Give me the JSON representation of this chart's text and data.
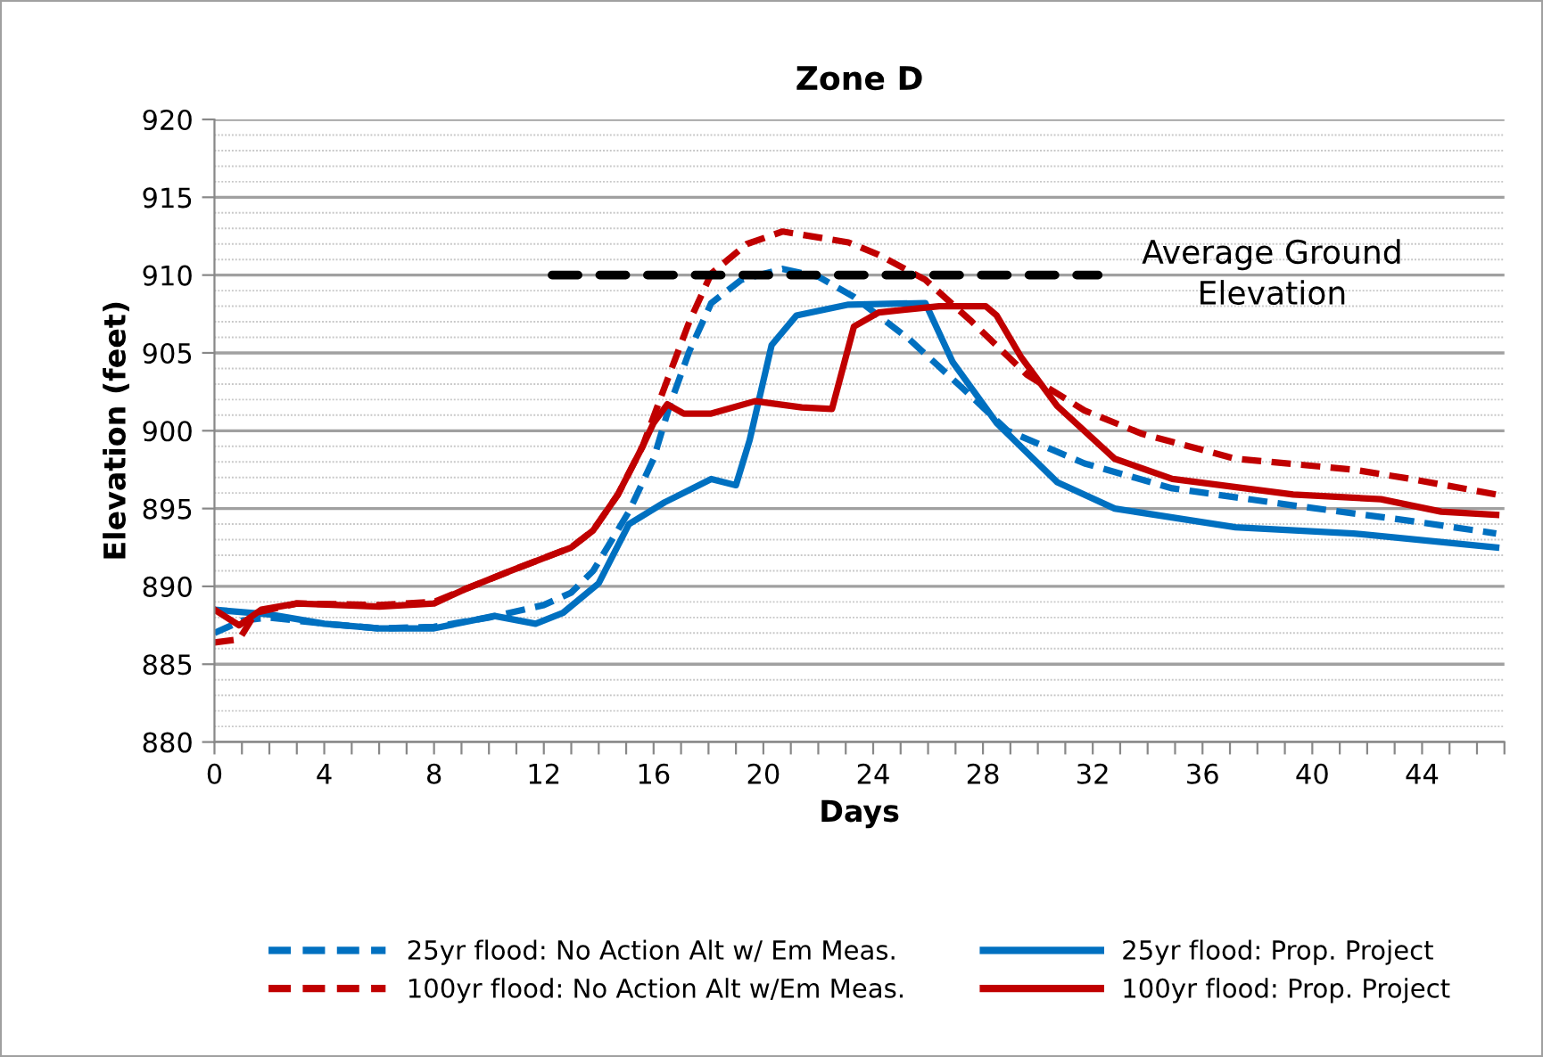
{
  "chart_data": {
    "type": "line",
    "title": "Zone D",
    "xlabel": "Days",
    "ylabel": "Elevation (feet)",
    "xlim": [
      0,
      47
    ],
    "ylim": [
      880,
      920
    ],
    "yticks": [
      880,
      885,
      890,
      895,
      900,
      905,
      910,
      915,
      920
    ],
    "xticks": [
      0,
      {
        "value": 1,
        "label": null
      },
      {
        "value": 2,
        "label": null
      },
      {
        "value": 3,
        "label": null
      },
      4,
      {
        "value": 5,
        "label": null
      },
      {
        "value": 6,
        "label": null
      },
      {
        "value": 7,
        "label": null
      },
      8,
      {
        "value": 9,
        "label": null
      },
      {
        "value": 10,
        "label": null
      },
      {
        "value": 11,
        "label": null
      },
      12,
      {
        "value": 13,
        "label": null
      },
      {
        "value": 14,
        "label": null
      },
      {
        "value": 15,
        "label": null
      },
      16,
      {
        "value": 17,
        "label": null
      },
      {
        "value": 18,
        "label": null
      },
      {
        "value": 19,
        "label": null
      },
      20,
      {
        "value": 21,
        "label": null
      },
      {
        "value": 22,
        "label": null
      },
      {
        "value": 23,
        "label": null
      },
      24,
      {
        "value": 25,
        "label": null
      },
      {
        "value": 26,
        "label": null
      },
      {
        "value": 27,
        "label": null
      },
      28,
      {
        "value": 29,
        "label": null
      },
      {
        "value": 30,
        "label": null
      },
      {
        "value": 31,
        "label": null
      },
      32,
      {
        "value": 33,
        "label": null
      },
      {
        "value": 34,
        "label": null
      },
      {
        "value": 35,
        "label": null
      },
      36,
      {
        "value": 37,
        "label": null
      },
      {
        "value": 38,
        "label": null
      },
      {
        "value": 39,
        "label": null
      },
      40,
      {
        "value": 41,
        "label": null
      },
      {
        "value": 42,
        "label": null
      },
      {
        "value": 43,
        "label": null
      },
      44,
      {
        "value": 45,
        "label": null
      },
      {
        "value": 46,
        "label": null
      },
      {
        "value": 47,
        "label": null
      }
    ],
    "grid": "y",
    "legend": "bottom",
    "series": [
      {
        "name": "25yr flood: No Action Alt w/ Em Meas.",
        "color": "#0070c0",
        "line_style": "dashed",
        "x": [
          0,
          1,
          2,
          4,
          6,
          8,
          10,
          12,
          13,
          13.8,
          15.1,
          16,
          16.6,
          17.3,
          18.1,
          19.2,
          20.7,
          22,
          23.3,
          25.3,
          27.4,
          28.9,
          31.7,
          34.9,
          39.3,
          43.6,
          46.7
        ],
        "values": [
          887.0,
          887.8,
          888.0,
          887.6,
          887.3,
          887.4,
          888.0,
          888.8,
          889.6,
          891.0,
          894.8,
          898.2,
          901.7,
          905.1,
          908.2,
          909.7,
          910.4,
          909.9,
          908.6,
          905.9,
          902.5,
          900.0,
          897.9,
          896.3,
          895.2,
          894.2,
          893.4
        ]
      },
      {
        "name": "25yr flood: Prop. Project",
        "color": "#0070c0",
        "line_style": "solid",
        "x": [
          0,
          2,
          4,
          6,
          8,
          10.2,
          11.7,
          12.7,
          14,
          15.1,
          16.4,
          18.1,
          19,
          19.5,
          20.3,
          21.2,
          23.1,
          25.9,
          26.9,
          28.5,
          30.7,
          32.8,
          37.2,
          41.5,
          46.7
        ],
        "values": [
          888.5,
          888.2,
          887.6,
          887.3,
          887.3,
          888.1,
          887.6,
          888.3,
          890.2,
          894.0,
          895.4,
          896.9,
          896.5,
          899.4,
          905.5,
          907.4,
          908.1,
          908.2,
          904.4,
          900.5,
          896.7,
          895.0,
          893.8,
          893.4,
          892.5
        ]
      },
      {
        "name": "100yr flood: No Action Alt w/Em Meas.",
        "color": "#c00000",
        "line_style": "dashed",
        "x": [
          0,
          0.9,
          1.5,
          3,
          6,
          8,
          9.1,
          10.8,
          13,
          13.8,
          14.7,
          15.6,
          16.4,
          17.3,
          18.1,
          19.4,
          20.7,
          23.1,
          24.2,
          25.9,
          27.6,
          29.6,
          31.7,
          33.8,
          37.2,
          41.5,
          43.6,
          46.7
        ],
        "values": [
          886.4,
          886.6,
          888.3,
          888.9,
          888.8,
          889.0,
          889.8,
          891.0,
          892.5,
          893.6,
          895.9,
          899.0,
          902.8,
          907.0,
          910.1,
          912.0,
          912.8,
          912.1,
          911.3,
          909.7,
          907.0,
          903.6,
          901.3,
          899.8,
          898.2,
          897.5,
          896.9,
          895.9
        ]
      },
      {
        "name": "100yr flood: Prop. Project",
        "color": "#c00000",
        "line_style": "solid",
        "x": [
          0,
          0.9,
          1.7,
          3,
          6,
          8,
          9.1,
          10.8,
          13,
          13.8,
          14.7,
          15.6,
          16,
          16.5,
          17.1,
          18.1,
          19.7,
          21.4,
          22.5,
          23.3,
          24.2,
          26.4,
          28.1,
          28.5,
          29.4,
          30.7,
          32.8,
          34.9,
          39.3,
          42.5,
          44.7,
          46.7
        ],
        "values": [
          888.5,
          887.5,
          888.5,
          888.9,
          888.7,
          888.9,
          889.8,
          891.0,
          892.5,
          893.6,
          895.9,
          899.0,
          900.5,
          901.7,
          901.1,
          901.1,
          901.9,
          901.5,
          901.4,
          906.7,
          907.6,
          908.0,
          908.0,
          907.4,
          904.7,
          901.6,
          898.2,
          896.9,
          895.9,
          895.6,
          894.8,
          894.6
        ]
      },
      {
        "color": "#000000",
        "line_style": "dashed",
        "x": [
          12.3,
          32.2
        ],
        "values": [
          910,
          910
        ]
      }
    ],
    "annotations": [
      "Average Ground\nElevation"
    ]
  }
}
